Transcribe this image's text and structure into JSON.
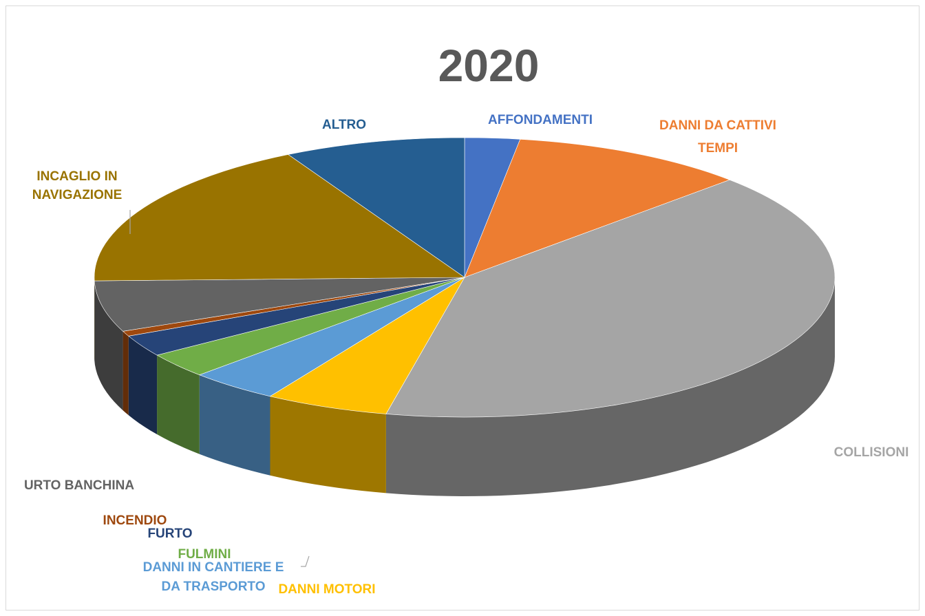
{
  "chart_data": {
    "type": "pie",
    "title": "2020",
    "unit": "",
    "slices": [
      {
        "label": "AFFONDAMENTI",
        "value": 2.4,
        "color": "#4472C4"
      },
      {
        "label": "DANNI DA CATTIVI TEMPI",
        "value": 10.3,
        "color": "#ED7D31"
      },
      {
        "label": "COLLISIONI",
        "value": 40.7,
        "color": "#A5A5A5"
      },
      {
        "label": "DANNI MOTORI",
        "value": 5.4,
        "color": "#FFC000"
      },
      {
        "label": "DANNI IN CANTIERE E DA TRASPORTO",
        "value": 3.9,
        "color": "#5B9BD5"
      },
      {
        "label": "FULMINI",
        "value": 2.9,
        "color": "#70AD47"
      },
      {
        "label": "FURTO",
        "value": 2.5,
        "color": "#264478"
      },
      {
        "label": "INCENDIO",
        "value": 0.6,
        "color": "#9E480E"
      },
      {
        "label": "URTO BANCHINA",
        "value": 5.9,
        "color": "#636363"
      },
      {
        "label": "INCAGLIO IN NAVIGAZIONE",
        "value": 17.5,
        "color": "#997300"
      },
      {
        "label": "ALTRO",
        "value": 7.9,
        "color": "#255E91"
      }
    ],
    "legend": "none",
    "style": "3d-pie"
  }
}
